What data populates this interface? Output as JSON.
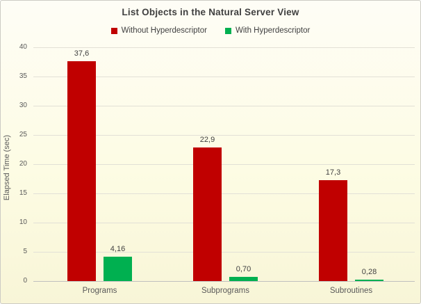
{
  "chart_data": {
    "type": "bar",
    "title": "List Objects in the Natural Server View",
    "xlabel": "",
    "ylabel": "Elapsed Time (sec)",
    "categories": [
      "Programs",
      "Subprograms",
      "Subroutines"
    ],
    "series": [
      {
        "name": "Without Hyperdescriptor",
        "color": "#C00000",
        "values": [
          37.6,
          22.9,
          17.3
        ],
        "value_labels": [
          "37,6",
          "22,9",
          "17,3"
        ]
      },
      {
        "name": "With Hyperdescriptor",
        "color": "#00B050",
        "values": [
          4.16,
          0.7,
          0.28
        ],
        "value_labels": [
          "4,16",
          "0,70",
          "0,28"
        ]
      }
    ],
    "ylim": [
      0,
      40
    ],
    "ytick_step": 5,
    "ytick_labels": [
      "0",
      "5",
      "10",
      "15",
      "20",
      "25",
      "30",
      "35",
      "40"
    ],
    "grid": "horizontal",
    "legend_position": "top",
    "colors": {
      "title_text": "#404040",
      "axis_text": "#595959",
      "gridline": "#E2E0D6",
      "axis_line": "#BFBFBF",
      "background_top": "#FEFDF6",
      "background_bottom": "#F8F5D7"
    }
  }
}
